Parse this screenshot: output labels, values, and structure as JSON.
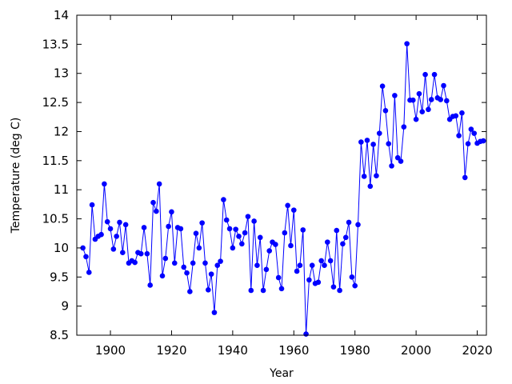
{
  "chart_data": {
    "type": "line",
    "title": "",
    "xlabel": "Year",
    "ylabel": "Temperature (deg C)",
    "xlim": [
      1889,
      2023
    ],
    "ylim": [
      8.5,
      14
    ],
    "xticks": [
      1900,
      1920,
      1940,
      1960,
      1980,
      2000,
      2020
    ],
    "yticks": [
      8.5,
      9,
      9.5,
      10,
      10.5,
      11,
      11.5,
      12,
      12.5,
      13,
      13.5,
      14
    ],
    "grid": false,
    "legend": false,
    "series": [
      {
        "color": "#0000ff",
        "marker": "circle",
        "x": [
          1891,
          1892,
          1893,
          1894,
          1895,
          1896,
          1897,
          1898,
          1899,
          1900,
          1901,
          1902,
          1903,
          1904,
          1905,
          1906,
          1907,
          1908,
          1909,
          1910,
          1911,
          1912,
          1913,
          1914,
          1915,
          1916,
          1917,
          1918,
          1919,
          1920,
          1921,
          1922,
          1923,
          1924,
          1925,
          1926,
          1927,
          1928,
          1929,
          1930,
          1931,
          1932,
          1933,
          1934,
          1935,
          1936,
          1937,
          1938,
          1939,
          1940,
          1941,
          1942,
          1943,
          1944,
          1945,
          1946,
          1947,
          1948,
          1949,
          1950,
          1951,
          1952,
          1953,
          1954,
          1955,
          1956,
          1957,
          1958,
          1959,
          1960,
          1961,
          1962,
          1963,
          1964,
          1965,
          1966,
          1967,
          1968,
          1969,
          1970,
          1971,
          1972,
          1973,
          1974,
          1975,
          1976,
          1977,
          1978,
          1979,
          1980,
          1981,
          1982,
          1983,
          1984,
          1985,
          1986,
          1987,
          1988,
          1989,
          1990,
          1991,
          1992,
          1993,
          1994,
          1995,
          1996,
          1997,
          1998,
          1999,
          2000,
          2001,
          2002,
          2003,
          2004,
          2005,
          2006,
          2007,
          2008,
          2009,
          2010,
          2011,
          2012,
          2013,
          2014,
          2015,
          2016,
          2017,
          2018,
          2019,
          2020,
          2021,
          2022
        ],
        "y": [
          10.0,
          9.85,
          9.58,
          10.74,
          10.15,
          10.2,
          10.23,
          11.1,
          10.45,
          10.33,
          9.98,
          10.2,
          10.44,
          9.92,
          10.4,
          9.74,
          9.78,
          9.75,
          9.92,
          9.9,
          10.35,
          9.9,
          9.36,
          10.78,
          10.63,
          11.1,
          9.52,
          9.82,
          10.37,
          10.62,
          9.74,
          10.35,
          10.33,
          9.67,
          9.57,
          9.25,
          9.74,
          10.25,
          10.0,
          10.43,
          9.74,
          9.28,
          9.55,
          8.89,
          9.7,
          9.77,
          10.83,
          10.48,
          10.33,
          10.0,
          10.32,
          10.2,
          10.07,
          10.26,
          10.54,
          9.27,
          10.46,
          9.7,
          10.18,
          9.27,
          9.63,
          9.95,
          10.1,
          10.06,
          9.49,
          9.3,
          10.26,
          10.73,
          10.04,
          10.65,
          9.6,
          9.7,
          10.31,
          8.52,
          9.45,
          9.7,
          9.39,
          9.41,
          9.78,
          9.7,
          10.1,
          9.78,
          9.33,
          10.3,
          9.27,
          10.07,
          10.18,
          10.44,
          9.5,
          9.35,
          10.4,
          11.82,
          11.23,
          11.85,
          11.06,
          11.78,
          11.24,
          11.97,
          12.78,
          12.36,
          11.79,
          11.41,
          12.62,
          11.55,
          11.49,
          12.08,
          13.51,
          12.54,
          12.54,
          12.21,
          12.65,
          12.34,
          12.98,
          12.38,
          12.55,
          12.98,
          12.58,
          12.55,
          12.79,
          12.53,
          12.21,
          12.26,
          12.27,
          11.93,
          12.32,
          11.21,
          11.79,
          12.04,
          11.97,
          11.8,
          11.83,
          11.84
        ]
      }
    ]
  }
}
